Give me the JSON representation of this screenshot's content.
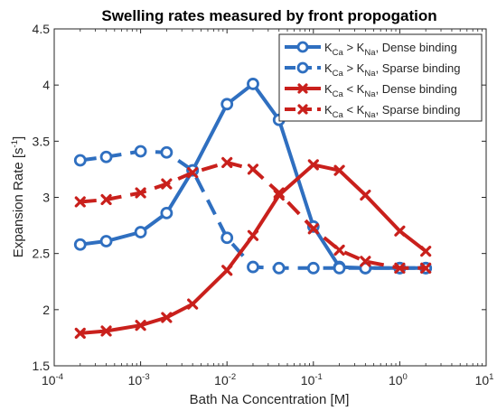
{
  "chart_data": {
    "type": "line",
    "title": "Swelling rates measured by front propogation",
    "xlabel": "Bath Na Concentration [M]",
    "ylabel": "Expansion Rate [s",
    "ylabel_sup": "-1",
    "ylabel_suffix": "]",
    "xscale": "log",
    "xlim": [
      0.0001,
      10
    ],
    "ylim": [
      1.5,
      4.5
    ],
    "xticks": [
      0.0001,
      0.001,
      0.01,
      0.1,
      1,
      10
    ],
    "xtick_labels": [
      {
        "base": "10",
        "exp": "-4"
      },
      {
        "base": "10",
        "exp": "-3"
      },
      {
        "base": "10",
        "exp": "-2"
      },
      {
        "base": "10",
        "exp": "-1"
      },
      {
        "base": "10",
        "exp": "0"
      },
      {
        "base": "10",
        "exp": "1"
      }
    ],
    "yticks": [
      1.5,
      2,
      2.5,
      3,
      3.5,
      4,
      4.5
    ],
    "ytick_labels": [
      "1.5",
      "2",
      "2.5",
      "3",
      "3.5",
      "4",
      "4.5"
    ],
    "grid": false,
    "legend_position": "top-right",
    "x": [
      0.0002,
      0.0004,
      0.001,
      0.002,
      0.004,
      0.01,
      0.02,
      0.04,
      0.1,
      0.2,
      0.4,
      1,
      2
    ],
    "series": [
      {
        "legend_parts": [
          "K",
          "Ca",
          " > K",
          "Na",
          ", Dense binding"
        ],
        "color": "#2f6fc0",
        "marker": "circle",
        "dash": false,
        "values": [
          2.58,
          2.61,
          2.69,
          2.86,
          3.24,
          3.83,
          4.01,
          3.69,
          2.74,
          2.38,
          2.37,
          2.37,
          2.37
        ]
      },
      {
        "legend_parts": [
          "K",
          "Ca",
          " > K",
          "Na",
          ", Sparse binding"
        ],
        "color": "#2f6fc0",
        "marker": "circle",
        "dash": true,
        "values": [
          3.33,
          3.36,
          3.41,
          3.4,
          3.24,
          2.64,
          2.38,
          2.37,
          2.37,
          2.37,
          2.37,
          2.37,
          2.37
        ]
      },
      {
        "legend_parts": [
          "K",
          "Ca",
          " < K",
          "Na",
          ", Dense binding"
        ],
        "color": "#c9201c",
        "marker": "x",
        "dash": false,
        "values": [
          1.79,
          1.81,
          1.86,
          1.93,
          2.05,
          2.35,
          2.66,
          3.02,
          3.29,
          3.24,
          3.02,
          2.7,
          2.52
        ]
      },
      {
        "legend_parts": [
          "K",
          "Ca",
          " < K",
          "Na",
          ", Sparse binding"
        ],
        "color": "#c9201c",
        "marker": "x",
        "dash": true,
        "values": [
          2.96,
          2.98,
          3.04,
          3.12,
          3.22,
          3.31,
          3.25,
          3.04,
          2.72,
          2.53,
          2.43,
          2.37,
          2.37
        ]
      }
    ]
  }
}
